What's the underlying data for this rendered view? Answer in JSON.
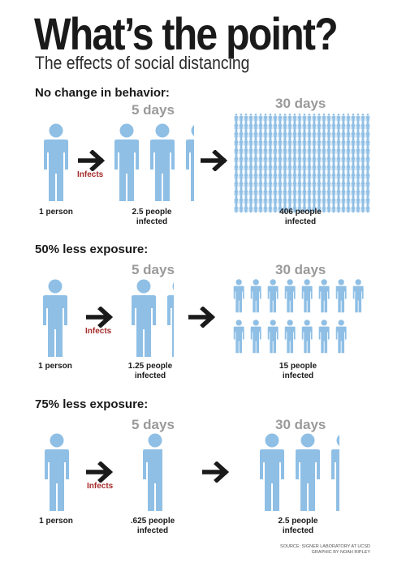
{
  "title": "What’s the point?",
  "subtitle": "The effects of social distancing",
  "colors": {
    "person": "#8fbfe5",
    "infects": "#a52a2a",
    "days": "#9a9a9a",
    "arrow": "#1a1a1a"
  },
  "icons": {
    "person": "person-icon",
    "arrow": "arrow-right-icon"
  },
  "infects_label": "Infects",
  "scenarios": [
    {
      "heading": "No change in behavior:",
      "days5_label": "5 days",
      "days30_label": "30 days",
      "start_caption": "1 person",
      "day5_caption_line1": "2.5 people",
      "day5_caption_line2": "infected",
      "day5_people": 2.5,
      "day30_caption_line1": "406 people",
      "day30_caption_line2": "infected",
      "day30_people": 406
    },
    {
      "heading": "50% less exposure:",
      "days5_label": "5 days",
      "days30_label": "30 days",
      "start_caption": "1 person",
      "day5_caption_line1": "1.25 people",
      "day5_caption_line2": "infected",
      "day5_people": 1.25,
      "day30_caption_line1": "15 people",
      "day30_caption_line2": "infected",
      "day30_people": 15
    },
    {
      "heading": "75% less exposure:",
      "days5_label": "5 days",
      "days30_label": "30 days",
      "start_caption": "1 person",
      "day5_caption_line1": ".625 people",
      "day5_caption_line2": "infected",
      "day5_people": 0.625,
      "day30_caption_line1": "2.5 people",
      "day30_caption_line2": "infected",
      "day30_people": 2.5
    }
  ],
  "source_line1": "SOURCE: SIGNER LABORATORY AT UCSD",
  "source_line2": "GRAPHIC BY NOAH RIPLEY"
}
